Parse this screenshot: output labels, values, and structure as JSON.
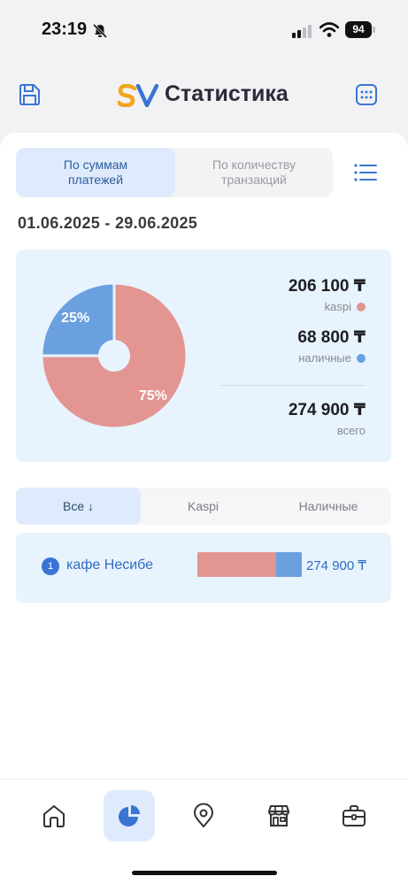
{
  "status_bar": {
    "time": "23:19",
    "battery": "94"
  },
  "header": {
    "title": "Статистика"
  },
  "mode_toggle": {
    "by_amount": "По суммам платежей",
    "by_count": "По количеству транзакций"
  },
  "date_range": "01.06.2025 - 29.06.2025",
  "summary": {
    "kaspi_value": "206 100 ₸",
    "kaspi_label": "kaspi",
    "cash_value": "68 800 ₸",
    "cash_label": "наличные",
    "total_value": "274 900 ₸",
    "total_label": "всего",
    "colors": {
      "kaspi": "#e39592",
      "cash": "#6aa0e0"
    }
  },
  "chart_data": {
    "type": "pie",
    "categories": [
      "kaspi",
      "наличные"
    ],
    "values": [
      75,
      25
    ],
    "labels": [
      "75%",
      "25%"
    ],
    "colors": [
      "#e39592",
      "#6aa0e0"
    ],
    "legend": "right"
  },
  "filter_tabs": {
    "all": "Все  ↓",
    "kaspi": "Kaspi",
    "cash": "Наличные"
  },
  "merchants": [
    {
      "rank": "1",
      "name": "кафе Несибе",
      "kaspi_share": 0.75,
      "cash_share": 0.25,
      "total": "274 900 ₸"
    }
  ],
  "bottom_nav": {
    "active": "statistics",
    "items": [
      "home-icon",
      "pie-chart-icon",
      "location-icon",
      "store-icon",
      "briefcase-icon"
    ]
  }
}
